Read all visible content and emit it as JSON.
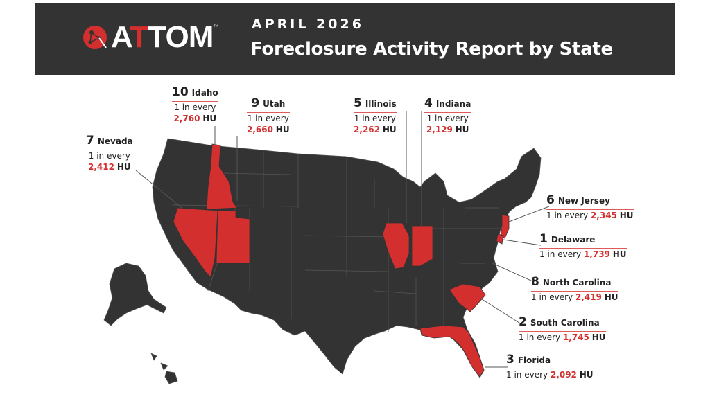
{
  "header": {
    "logo_text": "ATTOM",
    "logo_tm": "™",
    "period": "APRIL 2026",
    "title": "Foreclosure Activity Report by State"
  },
  "colors": {
    "header_bg": "#333333",
    "map_fill": "#333333",
    "highlight": "#d32f2f",
    "label_rule": "#e05a5a"
  },
  "labels": {
    "idaho": {
      "rank": "10",
      "state": "Idaho",
      "prefix": "1 in every",
      "value": "2,760",
      "unit": "HU"
    },
    "utah": {
      "rank": "9",
      "state": "Utah",
      "prefix": "1 in every",
      "value": "2,660",
      "unit": "HU"
    },
    "illinois": {
      "rank": "5",
      "state": "Illinois",
      "prefix": "1 in every",
      "value": "2,262",
      "unit": "HU"
    },
    "indiana": {
      "rank": "4",
      "state": "Indiana",
      "prefix": "1 in every",
      "value": "2,129",
      "unit": "HU"
    },
    "nevada": {
      "rank": "7",
      "state": "Nevada",
      "prefix": "1 in every",
      "value": "2,412",
      "unit": "HU"
    },
    "newjersey": {
      "rank": "6",
      "state": "New Jersey",
      "prefix": "1 in every",
      "value": "2,345",
      "unit": "HU"
    },
    "delaware": {
      "rank": "1",
      "state": "Delaware",
      "prefix": "1 in every",
      "value": "1,739",
      "unit": "HU"
    },
    "ncarolina": {
      "rank": "8",
      "state": "North Carolina",
      "prefix": "1 in every",
      "value": "2,419",
      "unit": "HU"
    },
    "scarolina": {
      "rank": "2",
      "state": "South Carolina",
      "prefix": "1 in every",
      "value": "1,745",
      "unit": "HU"
    },
    "florida": {
      "rank": "3",
      "state": "Florida",
      "prefix": "1 in every",
      "value": "2,092",
      "unit": "HU"
    }
  }
}
